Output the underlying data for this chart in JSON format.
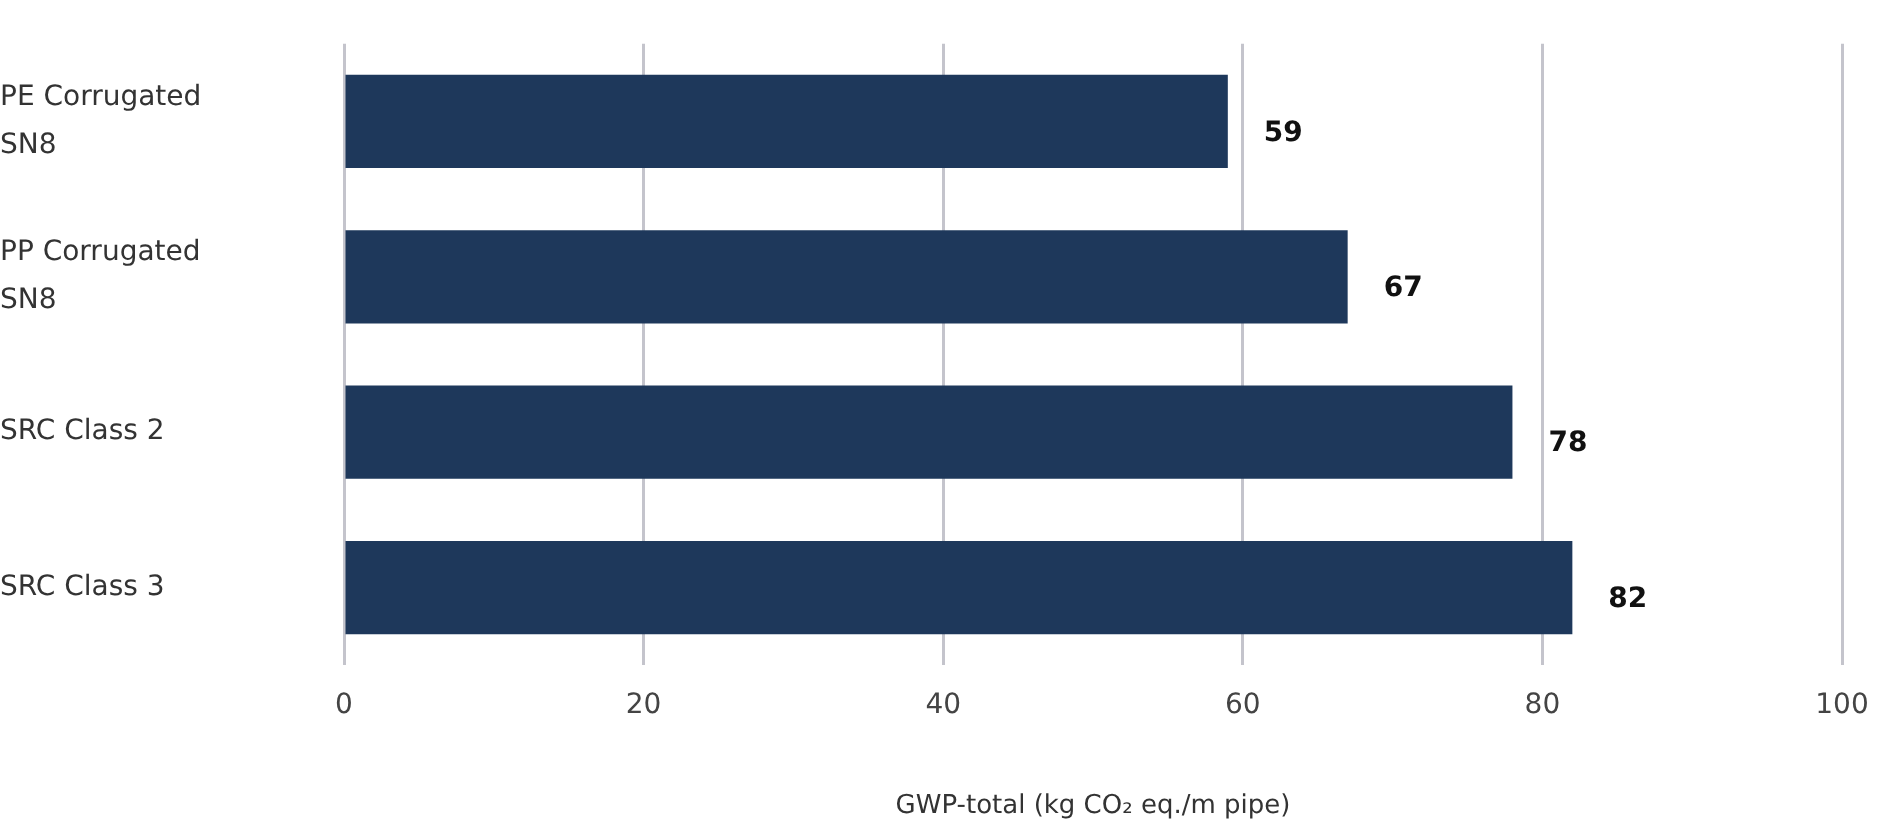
{
  "chart_data": {
    "type": "bar",
    "orientation": "horizontal",
    "xlabel": "GWP-total (kg CO₂ eq./m pipe)",
    "categories": [
      "PE Corrugated SN8",
      "PP Corrugated SN8",
      "SRC Class 2",
      "SRC Class 3"
    ],
    "values": [
      59,
      67,
      78,
      82
    ],
    "color": "#1e385b",
    "xlim": [
      0,
      100
    ],
    "xticks": [
      0,
      20,
      40,
      60,
      80,
      100
    ],
    "grid": "x",
    "data_labels": true,
    "legend": false
  }
}
